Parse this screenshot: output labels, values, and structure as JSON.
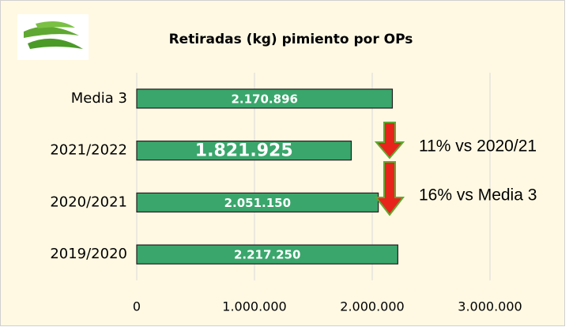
{
  "chart_data": {
    "type": "bar",
    "orientation": "horizontal",
    "title": "Retiradas (kg) pimiento por OPs",
    "categories": [
      "Media 3",
      "2021/2022",
      "2020/2021",
      "2019/2020"
    ],
    "values": [
      2170896,
      1821925,
      2051150,
      2217250
    ],
    "value_labels": [
      "2.170.896",
      "1.821.925",
      "2.051.150",
      "2.217.250"
    ],
    "color": "#3aa66c",
    "xlim": [
      0,
      3000000
    ],
    "xticks": [
      0,
      {
        "value": 1000000,
        "label": "1.000.000"
      },
      {
        "value": 2000000,
        "label": "2.000.000"
      },
      {
        "value": 3000000,
        "label": "3.000.000"
      }
    ],
    "grid": true,
    "annotations": [
      "11% vs 2020/21",
      "16% vs Media 3"
    ]
  }
}
